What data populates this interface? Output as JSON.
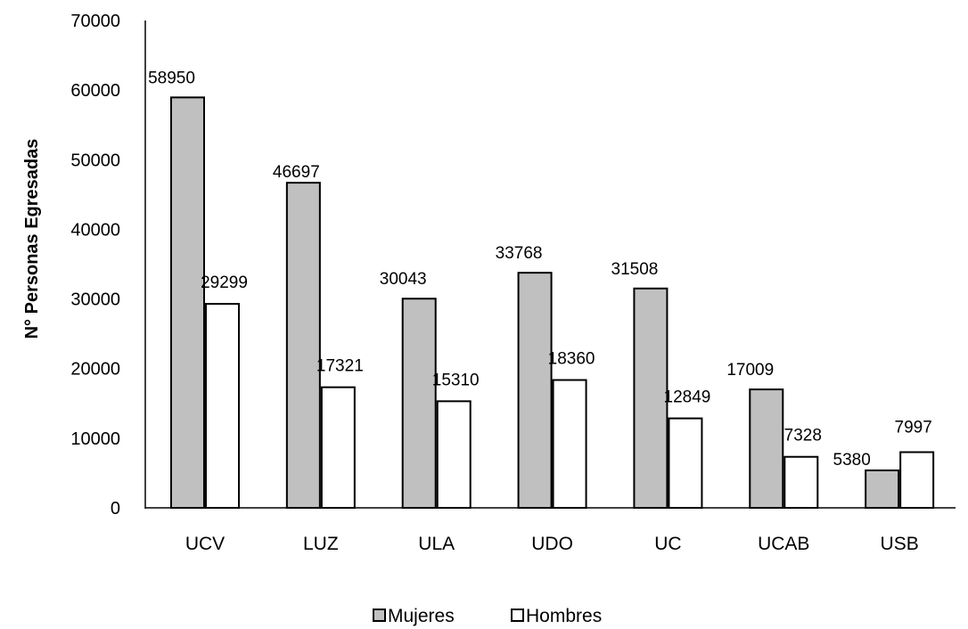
{
  "chart_data": {
    "type": "bar",
    "categories": [
      "UCV",
      "LUZ",
      "ULA",
      "UDO",
      "UC",
      "UCAB",
      "USB"
    ],
    "series": [
      {
        "name": "Mujeres",
        "values": [
          58950,
          46697,
          30043,
          33768,
          31508,
          17009,
          5380
        ],
        "color": "#c0c0c0"
      },
      {
        "name": "Hombres",
        "values": [
          29299,
          17321,
          15310,
          18360,
          12849,
          7328,
          7997
        ],
        "color": "#ffffff"
      }
    ],
    "xlabel": "",
    "ylabel": "N° Personas Egresadas",
    "ylim": [
      0,
      70000
    ],
    "yticks": [
      0,
      10000,
      20000,
      30000,
      40000,
      50000,
      60000,
      70000
    ],
    "grid": false,
    "legend_position": "bottom"
  }
}
